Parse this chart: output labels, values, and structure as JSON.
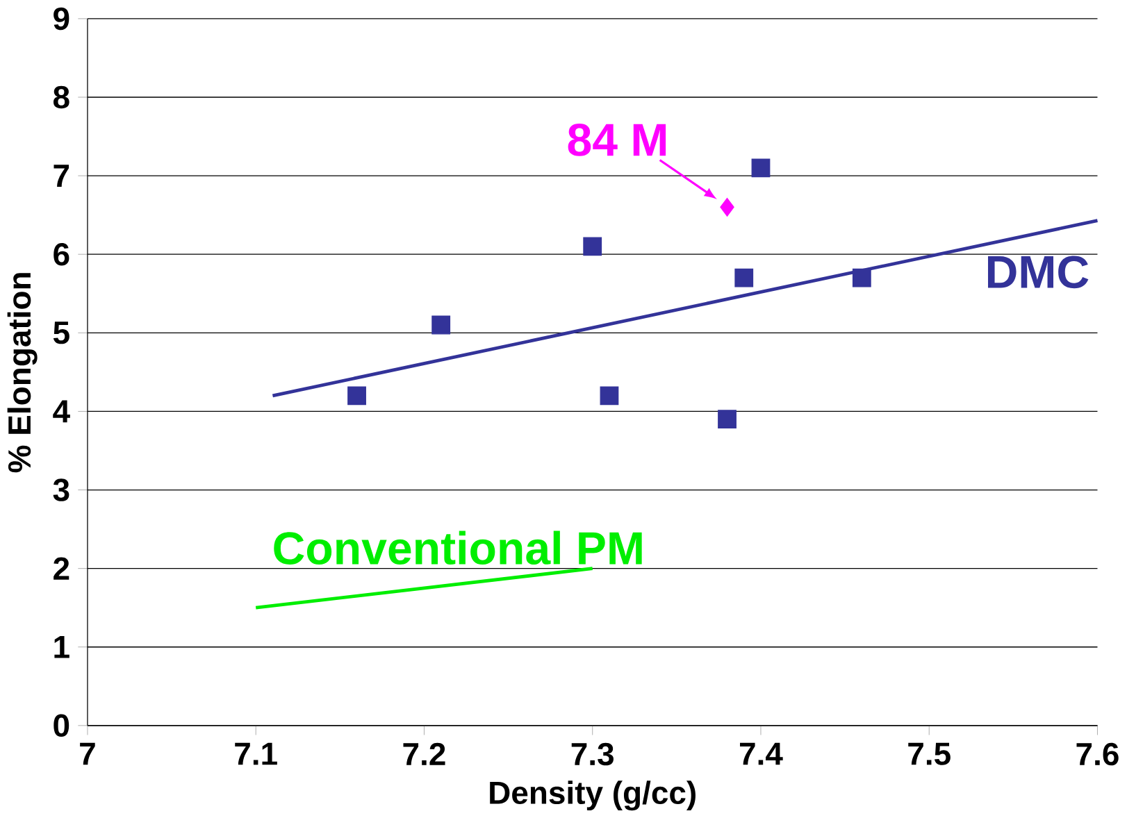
{
  "chart_data": {
    "type": "scatter",
    "xlabel": "Density (g/cc)",
    "ylabel": "% Elongation",
    "xlim": [
      7,
      7.6
    ],
    "ylim": [
      0,
      9
    ],
    "xticks": [
      7,
      7.1,
      7.2,
      7.3,
      7.4,
      7.5,
      7.6
    ],
    "yticks": [
      0,
      1,
      2,
      3,
      4,
      5,
      6,
      7,
      8,
      9
    ],
    "grid": "y",
    "series": [
      {
        "marker": "square",
        "color": "#333399",
        "x": [
          7.16,
          7.21,
          7.3,
          7.31,
          7.38,
          7.39,
          7.4,
          7.46
        ],
        "values": [
          4.2,
          5.1,
          6.1,
          4.2,
          3.9,
          5.7,
          7.1,
          5.7
        ]
      },
      {
        "type": "line",
        "name": "DMC",
        "color": "#333399",
        "x": [
          7.11,
          7.6
        ],
        "values": [
          4.2,
          6.43
        ]
      },
      {
        "marker": "diamond",
        "name": "84 M",
        "color": "#ff00ff",
        "x": [
          7.38
        ],
        "values": [
          6.6
        ]
      },
      {
        "type": "line",
        "name": "Conventional PM",
        "color": "#00ee00",
        "x": [
          7.1,
          7.3
        ],
        "values": [
          1.5,
          2.0
        ]
      }
    ]
  }
}
